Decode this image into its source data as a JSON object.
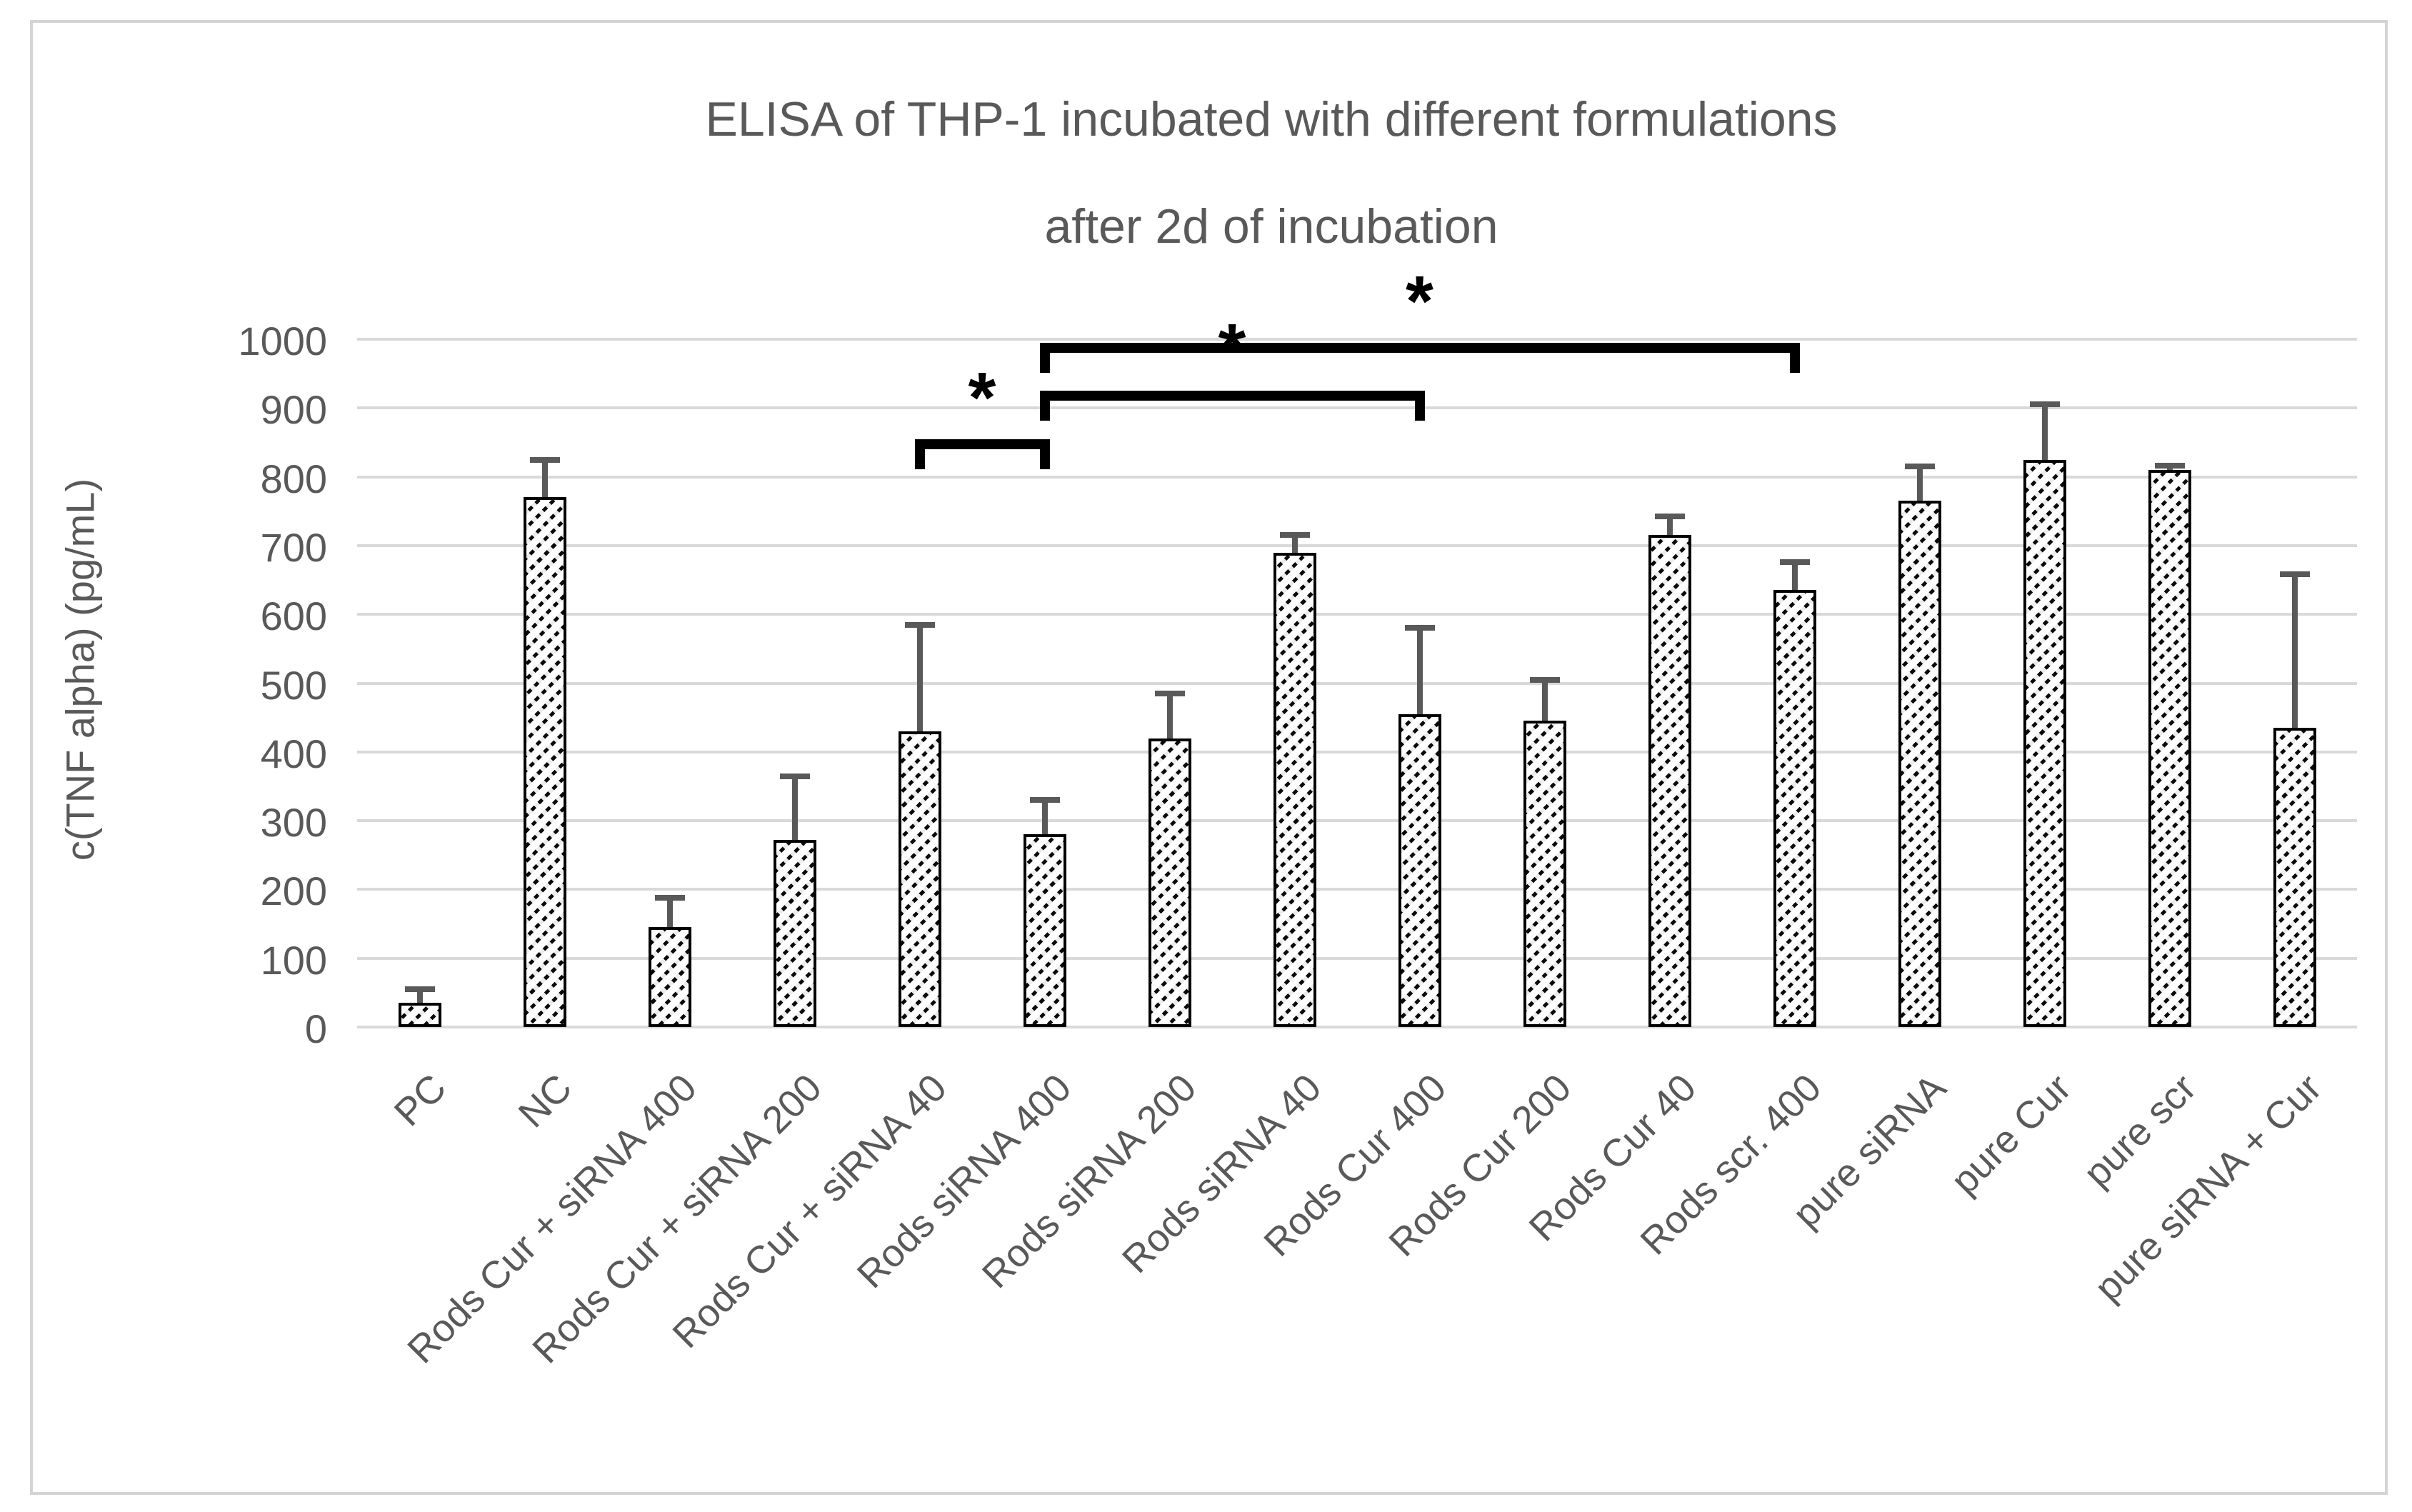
{
  "chart_data": {
    "type": "bar",
    "title": "ELISA of THP-1 incubated with different formulations after 2d of incubation",
    "title_lines": [
      "ELISA of THP-1 incubated with different formulations",
      "after 2d of incubation"
    ],
    "ylabel": "c(TNF alpha) (pg/mL)",
    "xlabel": "",
    "ylim": [
      0,
      1000
    ],
    "yticks": [
      0,
      100,
      200,
      300,
      400,
      500,
      600,
      700,
      800,
      900,
      1000
    ],
    "grid": true,
    "legend": false,
    "categories": [
      "PC",
      "NC",
      "Rods Cur + siRNA 400",
      "Rods Cur + siRNA 200",
      "Rods Cur + siRNA 40",
      "Rods siRNA 400",
      "Rods siRNA 200",
      "Rods siRNA 40",
      "Rods Cur 400",
      "Rods Cur 200",
      "Rods Cur 40",
      "Rods scr. 400",
      "pure siRNA",
      "pure Cur",
      "pure scr",
      "pure siRNA + Cur"
    ],
    "values": [
      35,
      770,
      145,
      272,
      430,
      280,
      420,
      690,
      455,
      445,
      715,
      635,
      765,
      825,
      810,
      435
    ],
    "errors_plus": [
      20,
      55,
      43,
      93,
      155,
      50,
      65,
      25,
      125,
      60,
      27,
      41,
      50,
      80,
      6,
      223
    ],
    "significance_brackets": [
      {
        "from_index": 4,
        "to_index": 5,
        "y": 855,
        "label": "*"
      },
      {
        "from_index": 5,
        "to_index": 8,
        "y": 925,
        "label": "*"
      },
      {
        "from_index": 5,
        "to_index": 11,
        "y": 995,
        "label": "*"
      }
    ],
    "colors": {
      "bar_fill": "#ffffff",
      "bar_hatch": "#0a0a0a",
      "bar_border": "#000000",
      "error_bar": "#595959",
      "gridline": "#d9d9d9",
      "text": "#595959",
      "bracket": "#000000",
      "frame_border": "#d4d4d4",
      "background": "#ffffff"
    }
  }
}
